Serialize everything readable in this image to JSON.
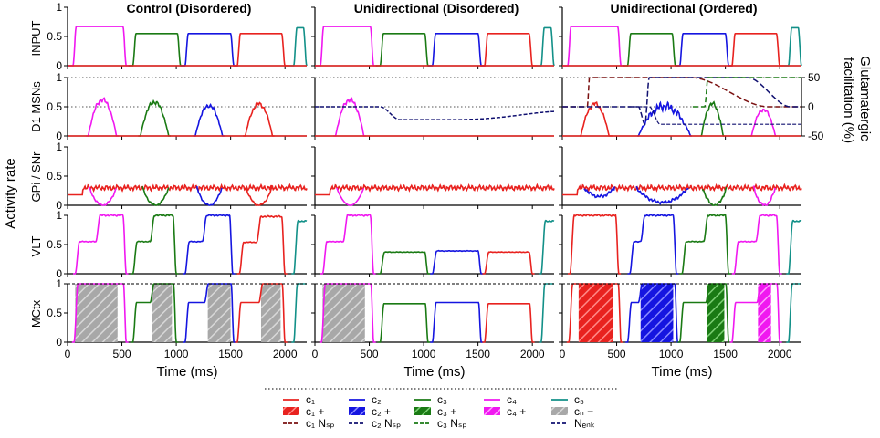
{
  "colors": {
    "c1": "#e8221f",
    "c2": "#1515e0",
    "c3": "#1a7a14",
    "c4": "#f018f0",
    "c5": "#129088",
    "gray": "#a8a8a8",
    "dark_red": "#7a1010",
    "navy": "#101070",
    "axis": "#000000"
  },
  "chart_data": {
    "type": "line",
    "figure_label_y": "Activity rate",
    "figure_label_y2": "Glutamatergic facilitation (%)",
    "columns": [
      {
        "title": "Control (Disordered)"
      },
      {
        "title": "Unidirectional (Disordered)"
      },
      {
        "title": "Unidirectional (Ordered)"
      }
    ],
    "rows": [
      {
        "label": "INPUT"
      },
      {
        "label": "D1 MSNs"
      },
      {
        "label": "GPi / SNr"
      },
      {
        "label": "VLT"
      },
      {
        "label": "MCtx"
      }
    ],
    "x_axis": {
      "label": "Time (ms)",
      "range": [
        0,
        2200
      ],
      "ticks": [
        "0",
        "500",
        "1000",
        "1500",
        "2000"
      ]
    },
    "y_axis": {
      "range": [
        0,
        1
      ],
      "ticks": [
        "0",
        "0.5",
        "1"
      ]
    },
    "y2_axis": {
      "range": [
        -50,
        50
      ],
      "ticks": [
        "-50",
        "0",
        "50"
      ]
    },
    "channel_windows": [
      {
        "channel": "c1",
        "start": 0,
        "end": 400
      },
      {
        "channel": "c3",
        "start": 600,
        "end": 980
      },
      {
        "channel": "c2",
        "start": 1080,
        "end": 1460
      },
      {
        "channel": "c1",
        "start": 1580,
        "end": 1960
      },
      {
        "channel": "c5",
        "start": 2080,
        "end": 2200
      }
    ],
    "input_pulses": [
      {
        "channel": "c4",
        "start": 50,
        "end": 540,
        "level": 0.67
      },
      {
        "channel": "c3",
        "start": 600,
        "end": 1040,
        "level": 0.55
      },
      {
        "channel": "c2",
        "start": 1080,
        "end": 1530,
        "level": 0.55
      },
      {
        "channel": "c1",
        "start": 1560,
        "end": 2000,
        "level": 0.55
      },
      {
        "channel": "c5",
        "start": 2080,
        "end": 2200,
        "level": 0.65
      }
    ],
    "msn_bumps": [
      {
        "channel": "c4",
        "center": 320,
        "width": 260,
        "peak": 0.62
      },
      {
        "channel": "c3",
        "center": 800,
        "width": 260,
        "peak": 0.58
      },
      {
        "channel": "c2",
        "center": 1300,
        "width": 250,
        "peak": 0.52
      },
      {
        "channel": "c1",
        "center": 1760,
        "width": 250,
        "peak": 0.55
      }
    ],
    "legend": [
      {
        "label": "c₁",
        "style": "line",
        "color": "c1"
      },
      {
        "label": "c₂",
        "style": "line",
        "color": "c2"
      },
      {
        "label": "c₃",
        "style": "line",
        "color": "c3"
      },
      {
        "label": "c₄",
        "style": "line",
        "color": "c4"
      },
      {
        "label": "c₅",
        "style": "line",
        "color": "c5"
      },
      {
        "label": "c₁ +",
        "style": "hatch",
        "color": "c1"
      },
      {
        "label": "c₂ +",
        "style": "hatch",
        "color": "c2"
      },
      {
        "label": "c₃ +",
        "style": "hatch",
        "color": "c3"
      },
      {
        "label": "c₄ +",
        "style": "hatch",
        "color": "c4"
      },
      {
        "label": "cₙ −",
        "style": "hatch",
        "color": "gray"
      },
      {
        "label": "c₁ Nₛₚ",
        "style": "dash",
        "color": "dark_red"
      },
      {
        "label": "c₂ Nₛₚ",
        "style": "dash",
        "color": "navy"
      },
      {
        "label": "c₃ Nₛₚ",
        "style": "dash",
        "color": "c3"
      },
      {
        "label": "Nₑₙₖ",
        "style": "dash",
        "color": "navy"
      }
    ]
  }
}
